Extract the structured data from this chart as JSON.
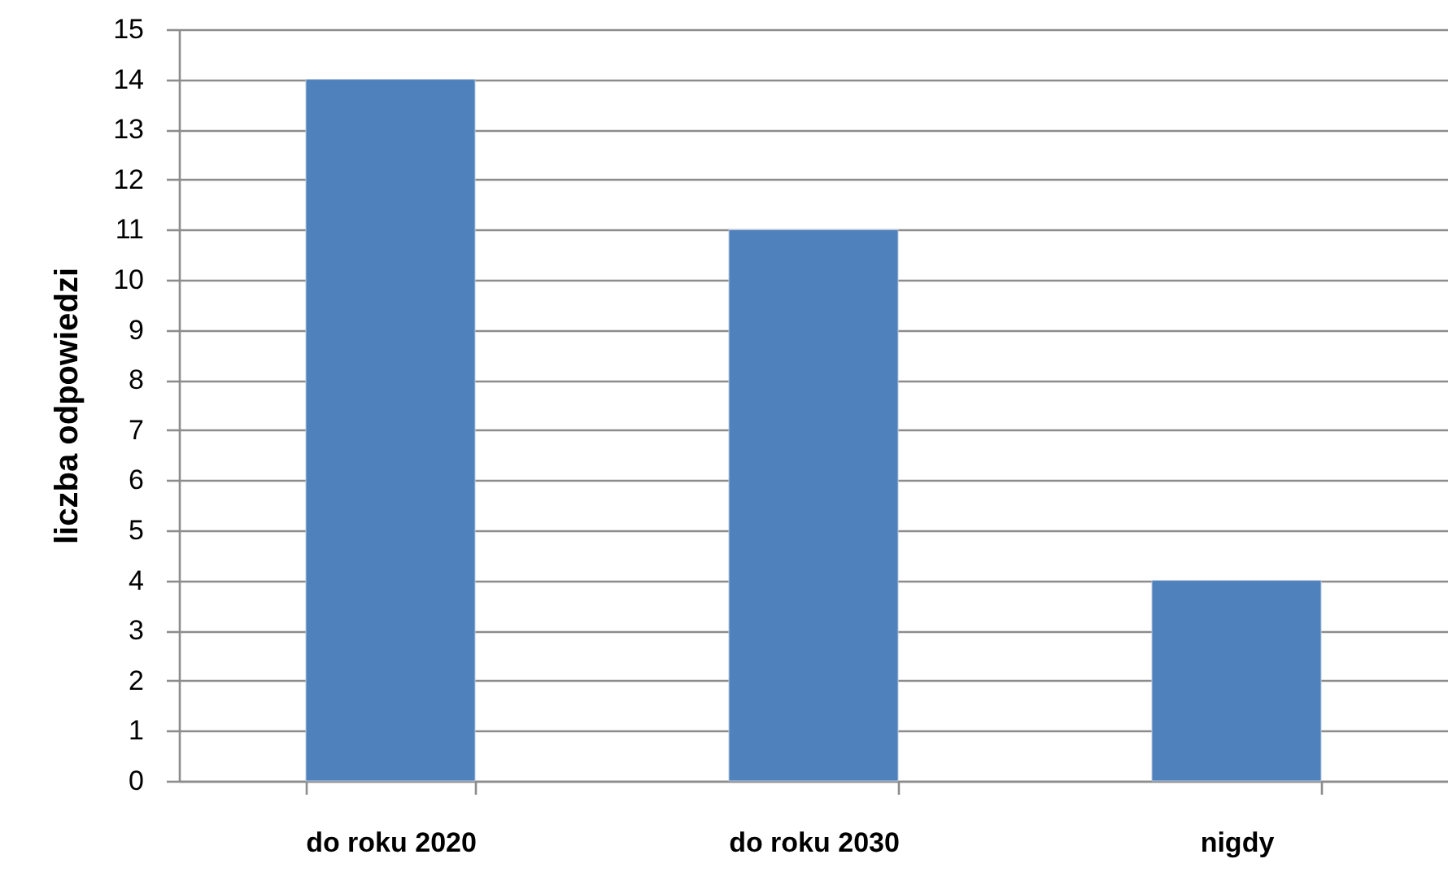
{
  "chart_data": {
    "type": "bar",
    "ylabel": "liczba odpowiedzi",
    "categories": [
      "do roku  2020",
      "do roku  2030",
      "nigdy"
    ],
    "values": [
      14,
      11,
      4
    ],
    "color": "#4f81bd",
    "ylim": [
      0,
      15
    ],
    "yticks": [
      0,
      1,
      2,
      3,
      4,
      5,
      6,
      7,
      8,
      9,
      10,
      11,
      12,
      13,
      14,
      15
    ],
    "grid": "y"
  }
}
